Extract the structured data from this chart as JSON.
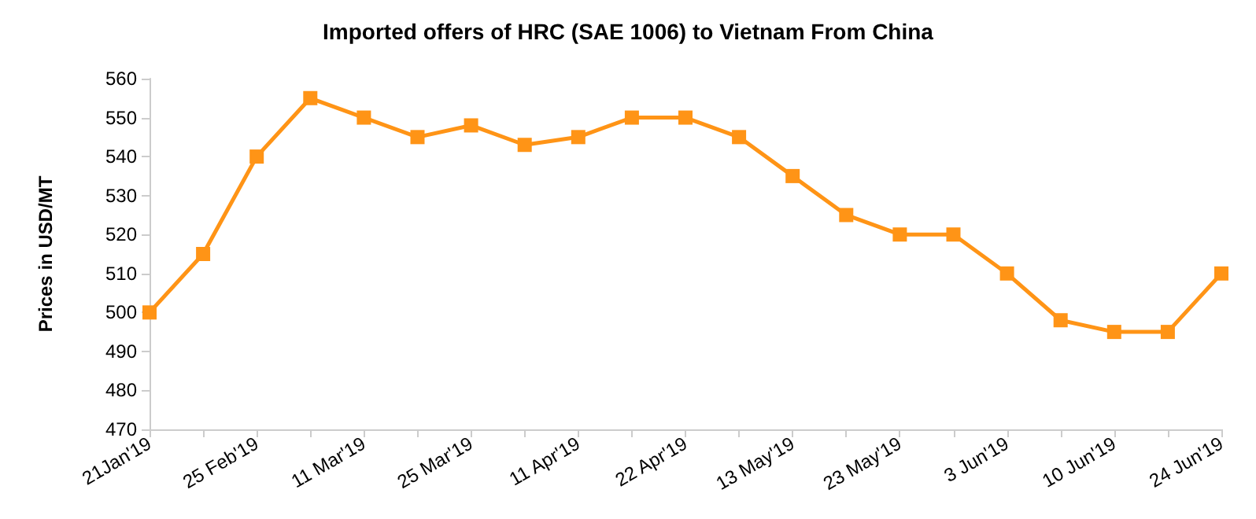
{
  "chart_data": {
    "type": "line",
    "title": "Imported offers of HRC (SAE 1006) to Vietnam From China",
    "ylabel": "Prices in USD/MT",
    "categories": [
      "21Jan'19",
      null,
      "25 Feb'19",
      null,
      "11 Mar'19",
      null,
      "25 Mar'19",
      null,
      "11 Apr'19",
      null,
      "22 Apr'19",
      null,
      "13 May'19",
      null,
      "23 May'19",
      null,
      "3 Jun'19",
      null,
      "10 Jun'19",
      null,
      "24 Jun'19"
    ],
    "series": [
      {
        "color": "#ff9416",
        "values": [
          500,
          515,
          540,
          555,
          550,
          545,
          548,
          543,
          545,
          550,
          550,
          545,
          535,
          525,
          520,
          520,
          510,
          498,
          495,
          495,
          510
        ]
      }
    ],
    "ylim": [
      470,
      560
    ],
    "yticks": [
      470,
      480,
      490,
      500,
      510,
      520,
      530,
      540,
      550,
      560
    ],
    "grid": false,
    "marker": "square",
    "line_style": "solid"
  }
}
